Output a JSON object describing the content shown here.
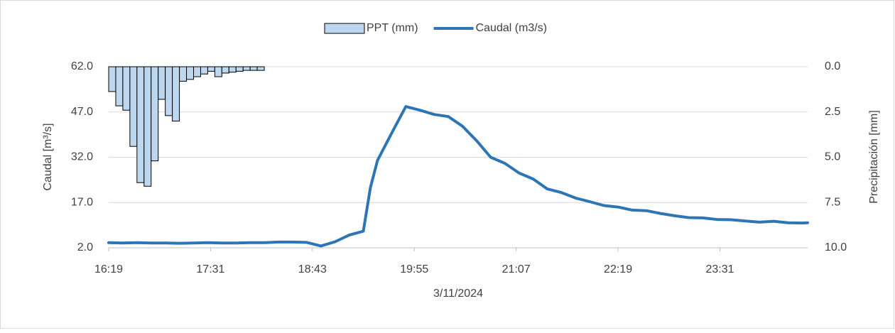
{
  "chart_data": {
    "type": "combo",
    "xlabel": "3/11/2024",
    "ylabel": "Caudal [m³/s]",
    "y2label": "Precipitación [mm]",
    "xlim": [
      "16:19",
      "00:33"
    ],
    "xticks": [
      "16:19",
      "17:31",
      "18:43",
      "19:55",
      "21:07",
      "22:19",
      "23:31"
    ],
    "ylim": [
      2,
      62
    ],
    "yticks": [
      {
        "value": 2,
        "label": "2.0"
      },
      {
        "value": 17,
        "label": "17.0"
      },
      {
        "value": 32,
        "label": "32.0"
      },
      {
        "value": 47,
        "label": "47.0"
      },
      {
        "value": 62,
        "label": "62.0"
      }
    ],
    "y2lim": [
      10,
      0
    ],
    "y2ticks": [
      {
        "value": 0,
        "label": "0.0"
      },
      {
        "value": 2.5,
        "label": "2.5"
      },
      {
        "value": 5,
        "label": "5.0"
      },
      {
        "value": 7.5,
        "label": "7.5"
      },
      {
        "value": 10,
        "label": "10.0"
      }
    ],
    "grid": true,
    "legend": "top",
    "series": [
      {
        "name": "PPT (mm)",
        "type": "bar",
        "axis": "y2",
        "color": "#bdd7ee",
        "x": [
          "16:19",
          "16:24",
          "16:29",
          "16:34",
          "16:39",
          "16:44",
          "16:49",
          "16:54",
          "16:59",
          "17:04",
          "17:09",
          "17:14",
          "17:19",
          "17:24",
          "17:29",
          "17:34",
          "17:39",
          "17:44",
          "17:49",
          "17:54",
          "17:59",
          "18:04"
        ],
        "values": [
          1.37,
          2.16,
          2.4,
          4.4,
          6.4,
          6.6,
          5.2,
          1.8,
          2.7,
          3.0,
          0.8,
          0.7,
          0.55,
          0.4,
          0.25,
          0.55,
          0.35,
          0.3,
          0.25,
          0.2,
          0.2,
          0.2
        ]
      },
      {
        "name": "Caudal (m3/s)",
        "type": "line",
        "color": "#2e75b6",
        "x": [
          "16:19",
          "16:29",
          "16:39",
          "16:49",
          "16:59",
          "17:09",
          "17:19",
          "17:29",
          "17:39",
          "17:49",
          "17:59",
          "18:09",
          "18:19",
          "18:29",
          "18:39",
          "18:49",
          "18:59",
          "19:09",
          "19:19",
          "19:24",
          "19:29",
          "19:39",
          "19:49",
          "19:59",
          "20:09",
          "20:19",
          "20:29",
          "20:39",
          "20:49",
          "20:59",
          "21:09",
          "21:19",
          "21:29",
          "21:39",
          "21:49",
          "21:59",
          "22:09",
          "22:19",
          "22:29",
          "22:39",
          "22:49",
          "22:59",
          "23:09",
          "23:19",
          "23:29",
          "23:39",
          "23:49",
          "23:59",
          "00:09",
          "00:19",
          "00:29",
          "00:33"
        ],
        "values": [
          3.7,
          3.6,
          3.7,
          3.6,
          3.6,
          3.5,
          3.6,
          3.7,
          3.6,
          3.6,
          3.7,
          3.7,
          3.9,
          3.9,
          3.8,
          2.6,
          4.0,
          6.2,
          7.5,
          22,
          31,
          40,
          48.8,
          47.6,
          46.2,
          45.5,
          42.3,
          37.5,
          32,
          30,
          26.8,
          24.8,
          21.5,
          20.3,
          18.5,
          17.3,
          16,
          15.5,
          14.5,
          14.3,
          13.4,
          12.6,
          12,
          11.9,
          11.4,
          11.3,
          10.9,
          10.5,
          10.8,
          10.3,
          10.2,
          10.3
        ]
      }
    ]
  }
}
